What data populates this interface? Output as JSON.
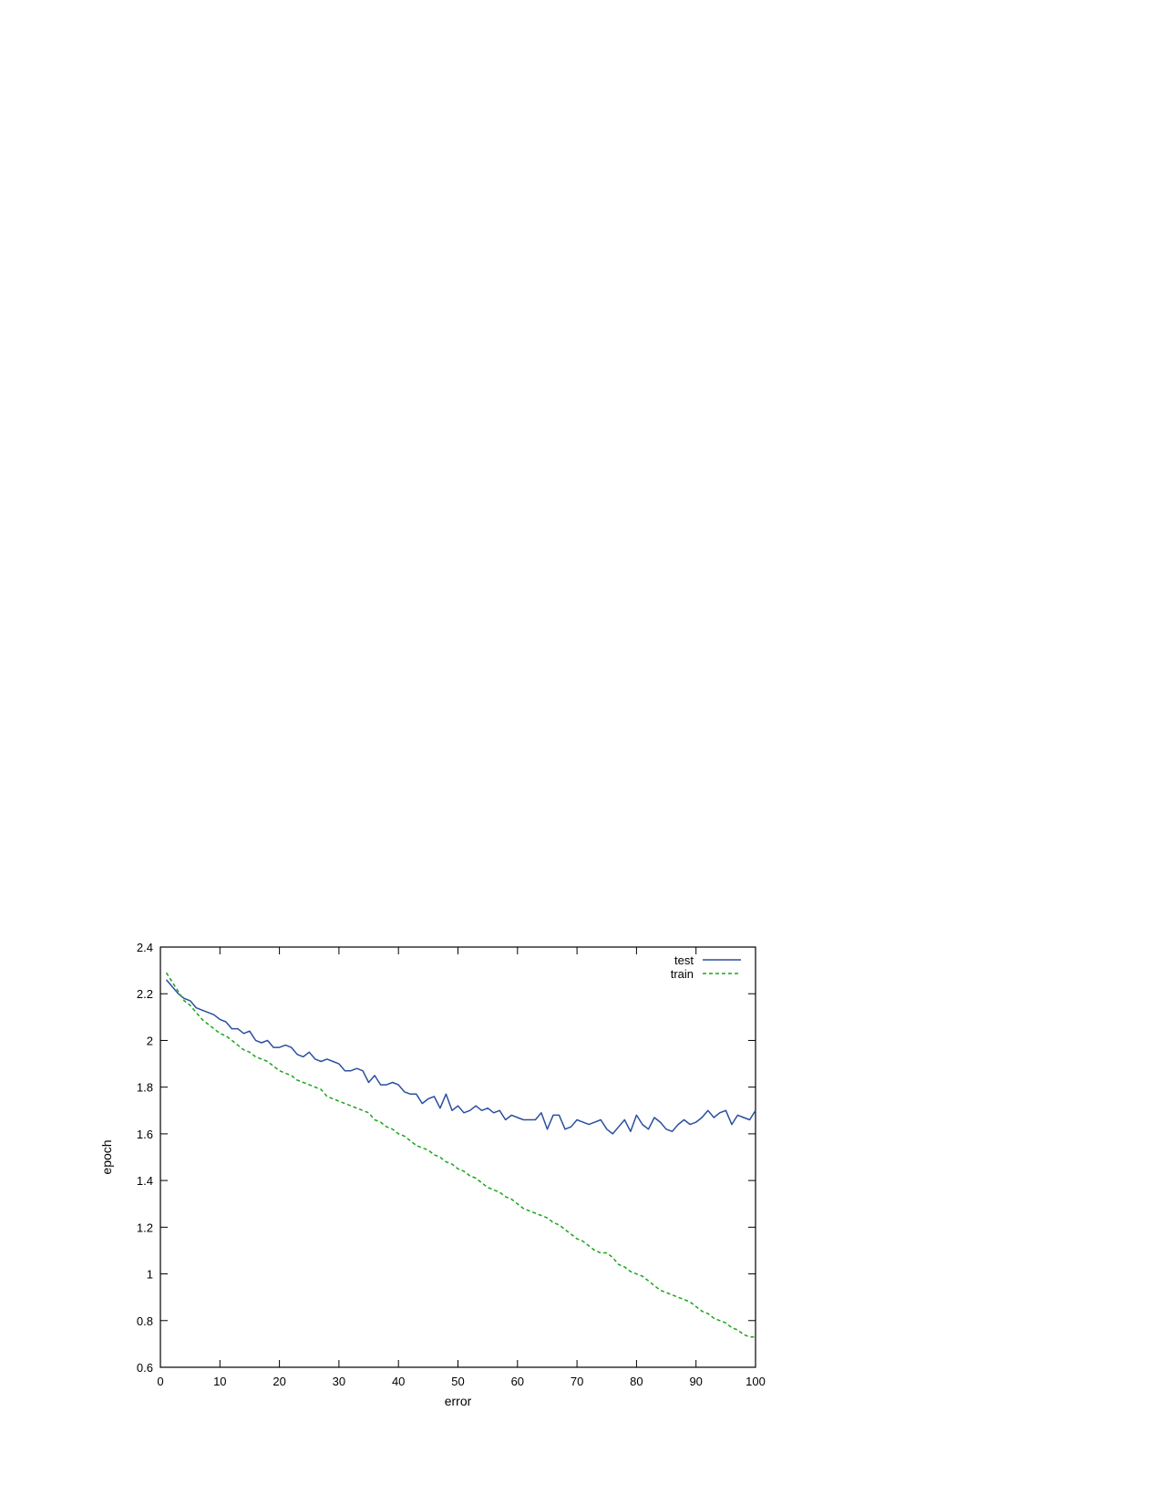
{
  "chart_data": {
    "type": "line",
    "xlabel": "error",
    "ylabel": "epoch",
    "xlim": [
      0,
      100
    ],
    "ylim": [
      0.6,
      2.4
    ],
    "xticks": [
      "0",
      "10",
      "20",
      "30",
      "40",
      "50",
      "60",
      "70",
      "80",
      "90",
      "100"
    ],
    "yticks": [
      "0.6",
      "0.8",
      "1",
      "1.2",
      "1.4",
      "1.6",
      "1.8",
      "2",
      "2.2",
      "2.4"
    ],
    "grid": false,
    "legend_position": "top-right",
    "x": [
      1,
      2,
      3,
      4,
      5,
      6,
      7,
      8,
      9,
      10,
      11,
      12,
      13,
      14,
      15,
      16,
      17,
      18,
      19,
      20,
      21,
      22,
      23,
      24,
      25,
      26,
      27,
      28,
      29,
      30,
      31,
      32,
      33,
      34,
      35,
      36,
      37,
      38,
      39,
      40,
      41,
      42,
      43,
      44,
      45,
      46,
      47,
      48,
      49,
      50,
      51,
      52,
      53,
      54,
      55,
      56,
      57,
      58,
      59,
      60,
      61,
      62,
      63,
      64,
      65,
      66,
      67,
      68,
      69,
      70,
      71,
      72,
      73,
      74,
      75,
      76,
      77,
      78,
      79,
      80,
      81,
      82,
      83,
      84,
      85,
      86,
      87,
      88,
      89,
      90,
      91,
      92,
      93,
      94,
      95,
      96,
      97,
      98,
      99,
      100
    ],
    "series": [
      {
        "name": "test",
        "color": "#2b4f9e",
        "dash": "solid",
        "values": [
          2.26,
          2.23,
          2.2,
          2.18,
          2.17,
          2.14,
          2.13,
          2.12,
          2.11,
          2.09,
          2.08,
          2.05,
          2.05,
          2.03,
          2.04,
          2.0,
          1.99,
          2.0,
          1.97,
          1.97,
          1.98,
          1.97,
          1.94,
          1.93,
          1.95,
          1.92,
          1.91,
          1.92,
          1.91,
          1.9,
          1.87,
          1.87,
          1.88,
          1.87,
          1.82,
          1.85,
          1.81,
          1.81,
          1.82,
          1.81,
          1.78,
          1.77,
          1.77,
          1.73,
          1.75,
          1.76,
          1.71,
          1.77,
          1.7,
          1.72,
          1.69,
          1.7,
          1.72,
          1.7,
          1.71,
          1.69,
          1.7,
          1.66,
          1.68,
          1.67,
          1.66,
          1.66,
          1.66,
          1.69,
          1.62,
          1.68,
          1.68,
          1.62,
          1.63,
          1.66,
          1.65,
          1.64,
          1.65,
          1.66,
          1.62,
          1.6,
          1.63,
          1.66,
          1.61,
          1.68,
          1.64,
          1.62,
          1.67,
          1.65,
          1.62,
          1.61,
          1.64,
          1.66,
          1.64,
          1.65,
          1.67,
          1.7,
          1.67,
          1.69,
          1.7,
          1.64,
          1.68,
          1.67,
          1.66,
          1.7
        ]
      },
      {
        "name": "train",
        "color": "#1aa51a",
        "dash": "dashed",
        "values": [
          2.29,
          2.25,
          2.21,
          2.17,
          2.15,
          2.12,
          2.09,
          2.07,
          2.05,
          2.03,
          2.02,
          2.0,
          1.98,
          1.96,
          1.95,
          1.93,
          1.92,
          1.91,
          1.89,
          1.87,
          1.86,
          1.85,
          1.83,
          1.82,
          1.81,
          1.8,
          1.79,
          1.76,
          1.75,
          1.74,
          1.73,
          1.72,
          1.71,
          1.7,
          1.69,
          1.66,
          1.65,
          1.63,
          1.62,
          1.6,
          1.59,
          1.57,
          1.55,
          1.54,
          1.53,
          1.51,
          1.5,
          1.48,
          1.47,
          1.45,
          1.44,
          1.42,
          1.41,
          1.39,
          1.37,
          1.36,
          1.35,
          1.33,
          1.32,
          1.3,
          1.28,
          1.27,
          1.26,
          1.25,
          1.24,
          1.22,
          1.21,
          1.19,
          1.17,
          1.15,
          1.14,
          1.12,
          1.1,
          1.09,
          1.09,
          1.07,
          1.04,
          1.03,
          1.01,
          1.0,
          0.99,
          0.97,
          0.95,
          0.93,
          0.92,
          0.91,
          0.9,
          0.89,
          0.88,
          0.86,
          0.84,
          0.83,
          0.81,
          0.8,
          0.79,
          0.77,
          0.76,
          0.74,
          0.73,
          0.73
        ]
      }
    ]
  }
}
